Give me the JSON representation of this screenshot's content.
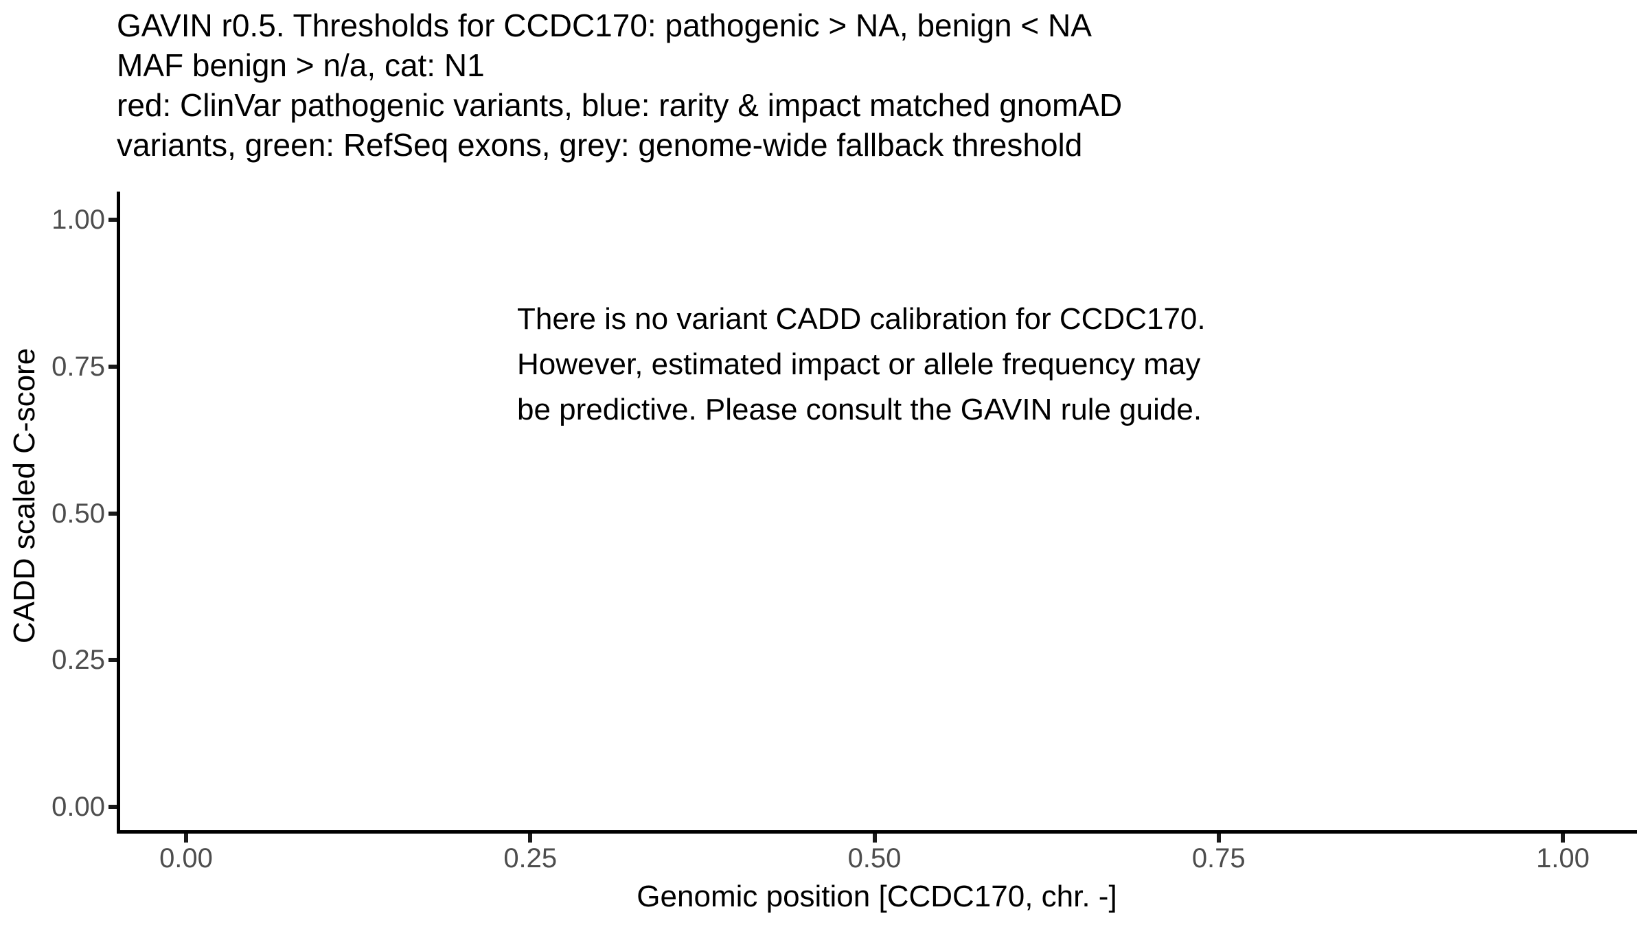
{
  "chart_data": {
    "type": "scatter",
    "title": "GAVIN r0.5. Thresholds for CCDC170: pathogenic > NA, benign < NA MAF benign > n/a, cat: N1 red: ClinVar pathogenic variants, blue: rarity & impact matched gnomAD variants, green: RefSeq exons, grey: genome-wide fallback threshold",
    "xlabel": "Genomic position [CCDC170, chr. -]",
    "ylabel": "CADD scaled C-score",
    "xlim": [
      0,
      1
    ],
    "ylim": [
      0,
      1
    ],
    "x_ticks": [
      0.0,
      0.25,
      0.5,
      0.75,
      1.0
    ],
    "y_ticks": [
      0.0,
      0.25,
      0.5,
      0.75,
      1.0
    ],
    "grid": false,
    "legend": "none",
    "series": [],
    "annotation": "There is no variant CADD calibration for CCDC170. However, estimated impact or allele frequency may be predictive. Please consult the GAVIN rule guide."
  },
  "title_lines": [
    "GAVIN r0.5. Thresholds for CCDC170: pathogenic > NA, benign < NA",
    "MAF benign > n/a, cat: N1",
    "red: ClinVar pathogenic variants, blue: rarity & impact matched gnomAD",
    "variants, green: RefSeq exons, grey: genome-wide fallback threshold"
  ],
  "annotation_lines": [
    "There is no variant CADD calibration for CCDC170.",
    "However, estimated impact or allele frequency may",
    "be predictive. Please consult the GAVIN rule guide."
  ],
  "axes": {
    "x": {
      "title": "Genomic position [CCDC170, chr. -]",
      "ticks": [
        {
          "value": 0.0,
          "label": "0.00"
        },
        {
          "value": 0.25,
          "label": "0.25"
        },
        {
          "value": 0.5,
          "label": "0.50"
        },
        {
          "value": 0.75,
          "label": "0.75"
        },
        {
          "value": 1.0,
          "label": "1.00"
        }
      ]
    },
    "y": {
      "title": "CADD scaled C-score",
      "ticks": [
        {
          "value": 0.0,
          "label": "0.00"
        },
        {
          "value": 0.25,
          "label": "0.25"
        },
        {
          "value": 0.5,
          "label": "0.50"
        },
        {
          "value": 0.75,
          "label": "0.75"
        },
        {
          "value": 1.0,
          "label": "1.00"
        }
      ]
    }
  },
  "colors": {
    "background": "#ffffff",
    "text": "#000000",
    "tick_label": "#4d4d4d",
    "axis_line": "#000000",
    "tick_mark": "#1a1a1a"
  }
}
